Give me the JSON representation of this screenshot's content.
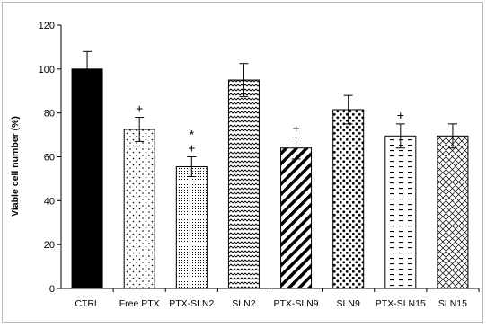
{
  "chart_data": {
    "type": "bar",
    "ylabel": "Viable cell number (%)",
    "xlabel": "",
    "ylim": [
      0,
      120
    ],
    "yticks": [
      0,
      20,
      40,
      60,
      80,
      100,
      120
    ],
    "grid": false,
    "legend": "none",
    "categories": [
      "CTRL",
      "Free PTX",
      "PTX-SLN2",
      "SLN2",
      "PTX-SLN9",
      "SLN9",
      "PTX-SLN15",
      "SLN15"
    ],
    "values": [
      100,
      72.5,
      55.5,
      95,
      64,
      81.5,
      69.5,
      69.5
    ],
    "errors": [
      8,
      5.5,
      4.5,
      7.5,
      5,
      6.5,
      5.5,
      5.5
    ],
    "annotations": [
      "",
      "+",
      "*\n+",
      "",
      "+",
      "",
      "+",
      ""
    ],
    "patterns": [
      "solid-black",
      "dots-sparse",
      "dots-dense",
      "wave",
      "diagonal-wide",
      "dots-large",
      "dashes",
      "crosshatch"
    ]
  }
}
